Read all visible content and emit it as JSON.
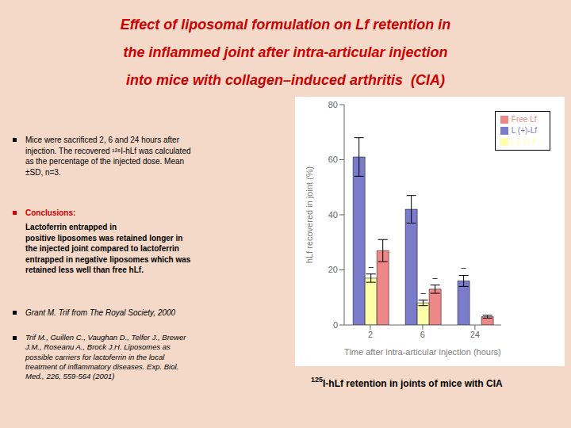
{
  "chart_data": {
    "type": "bar",
    "title": "Effect of liposomal formulation on Lf retention in\nthe inflammed joint after intra-articular injection\ninto mice with collagen–induced arthritis  (CIA)",
    "categories": [
      "2",
      "6",
      "24"
    ],
    "series": [
      {
        "name": "L (+)-Lf",
        "color": "#7b7bcc",
        "values": [
          61,
          42,
          16
        ],
        "errors": [
          7,
          5,
          2
        ]
      },
      {
        "name": "L (-)-Lf",
        "color": "#ffffaa",
        "values": [
          17,
          8,
          0
        ],
        "errors": [
          1.5,
          1,
          0
        ]
      },
      {
        "name": "Free Lf",
        "color": "#ee8888",
        "values": [
          27,
          13,
          3
        ],
        "errors": [
          4,
          1.5,
          0.5
        ]
      }
    ],
    "xlabel": "Time after intra-articular injection (hours)",
    "ylabel": "hLf recovered in joint (%)",
    "ylim": [
      0,
      80
    ],
    "yticks": [
      0,
      20,
      40,
      60,
      80
    ],
    "legend": "upper right",
    "grid": false,
    "annotations": [
      {
        "text": "–",
        "series": "L (-)-Lf",
        "category": "2"
      },
      {
        "text": "–",
        "series": "L (-)-Lf",
        "category": "6"
      },
      {
        "text": "–",
        "series": "L (+)-Lf",
        "category": "24"
      },
      {
        "text": "–",
        "series": "Free Lf",
        "category": "6"
      }
    ],
    "notes": [
      {
        "text": "Mice were sacrificed 2, 6 and 24 hours after\ninjection. The recovered ¹²⁵I-hLf was calculated\nas the percentage of the injected dose. Mean\n±SD, n=3."
      },
      {
        "label": "Conclusions:",
        "text": "Lactoferrin entrapped in\npositive liposomes was retained longer in\nthe injected joint compared to lactoferrin\nentrapped in negative liposomes which was\nretained less well than free hLf."
      },
      {
        "text": "Grant  M. Trif from The Royal Society, 2000"
      },
      {
        "text": "Trif M., Guillen C., Vaughan D., Telfer J., Brewer\nJ.M., Roseanu A., Brock J.H. Liposomes as\npossible carriers for lactoferrin in the local\ntreatment of inflammatory diseases. Exp. Biol.\nMed., 226, 559-564 (2001)"
      }
    ],
    "caption": {
      "superscript": "125",
      "text": "I-hLf retention in joints of mice with CIA"
    }
  }
}
